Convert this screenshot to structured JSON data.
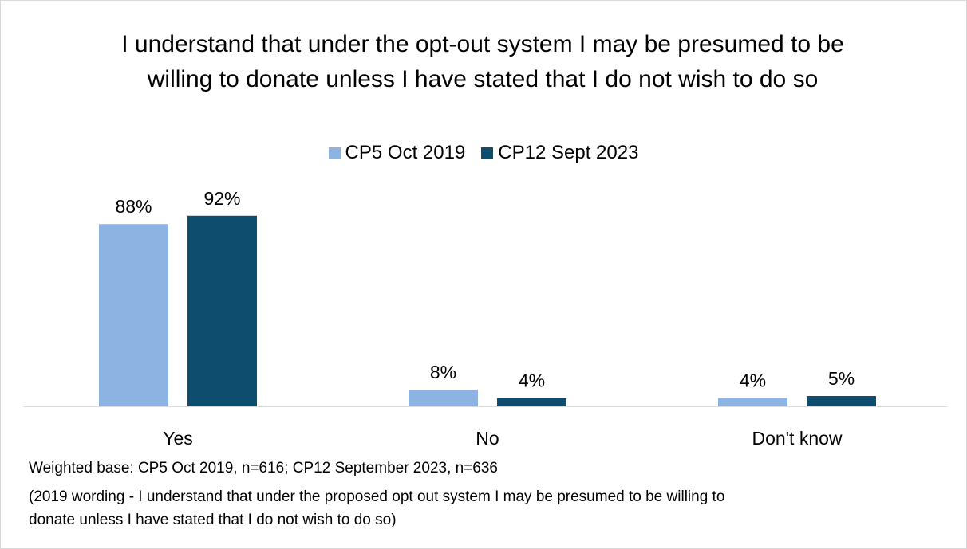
{
  "chart_data": {
    "type": "bar",
    "title": "I understand that under the opt-out system I may be presumed to be willing to donate unless I have stated that I do not wish to do so",
    "categories": [
      "Yes",
      "No",
      "Don't know"
    ],
    "series": [
      {
        "name": "CP5 Oct 2019",
        "values": [
          88,
          8,
          4
        ],
        "labels": [
          "88%",
          "8%",
          "4%"
        ],
        "color": "#8db3e2"
      },
      {
        "name": "CP12 Sept 2023",
        "values": [
          92,
          4,
          5
        ],
        "labels": [
          "92%",
          "4%",
          "5%"
        ],
        "color": "#0e4d6e"
      }
    ],
    "ylim": [
      0,
      100
    ],
    "grid": false,
    "legend_position": "top"
  },
  "footnotes": {
    "base": "Weighted base: CP5 Oct 2019, n=616; CP12 September 2023, n=636",
    "wording_line1": "(2019 wording - I understand that under the proposed opt out system I may be presumed to be willing to",
    "wording_line2": "donate unless I have stated that I do not wish to do so)"
  }
}
